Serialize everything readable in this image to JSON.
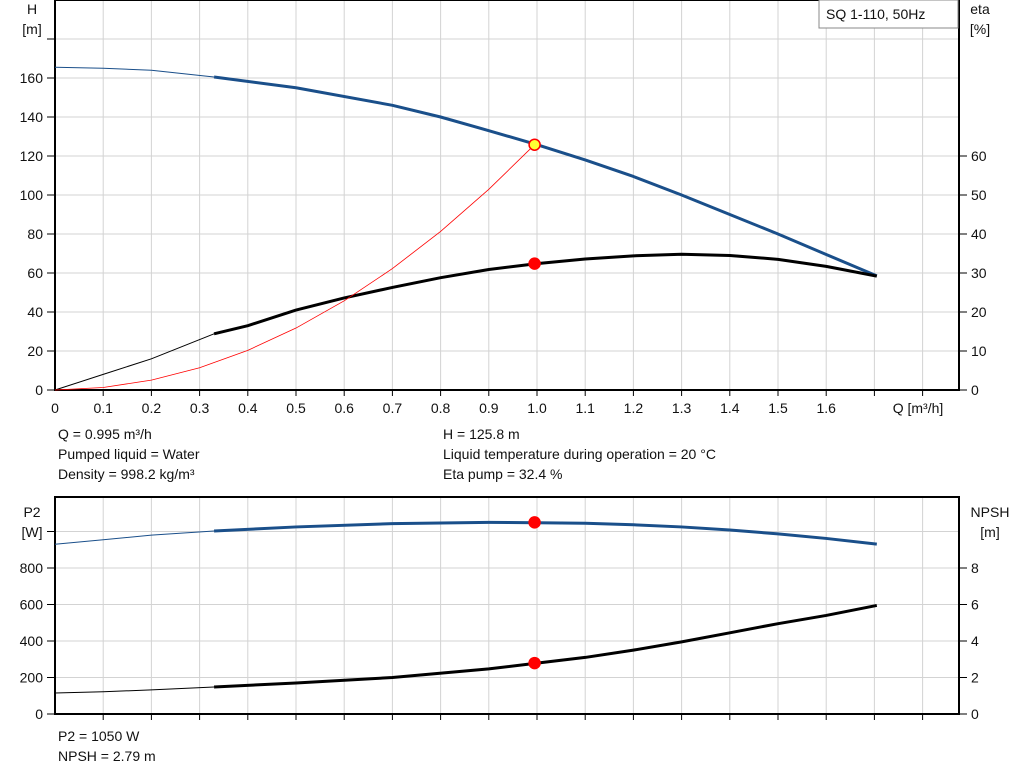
{
  "legend_label": "SQ 1-110, 50Hz",
  "info_top_left": [
    "Q = 0.995 m³/h",
    "Pumped liquid = Water",
    "Density = 998.2 kg/m³"
  ],
  "info_top_right": [
    "H = 125.8 m",
    "Liquid temperature during operation = 20 °C",
    "Eta pump = 32.4 %"
  ],
  "info_bottom": [
    "P2 = 1050 W",
    "NPSH = 2.79 m"
  ],
  "colors": {
    "blue": "#1a4f8a",
    "black": "#000000",
    "red": "#ff0000",
    "marker_fill": "#ffff33",
    "grid": "#d3d3d3"
  },
  "chart_data": [
    {
      "type": "line",
      "xlabel": "Q [m³/h]",
      "ylabel_left": [
        "H",
        "[m]"
      ],
      "ylabel_right": [
        "eta",
        "[%]"
      ],
      "xlim": [
        0,
        1.87
      ],
      "ylim_left": [
        0,
        190
      ],
      "ylim_right": [
        0,
        95
      ],
      "grid": true,
      "x_ticks": [
        "0",
        "0.1",
        "0.2",
        "0.3",
        "0.4",
        "0.5",
        "0.6",
        "0.7",
        "0.8",
        "0.9",
        "1.0",
        "1.1",
        "1.2",
        "1.3",
        "1.4",
        "1.5",
        "1.6"
      ],
      "y_ticks_left": [
        "0",
        "20",
        "40",
        "60",
        "80",
        "100",
        "120",
        "140",
        "160"
      ],
      "y_ticks_right": [
        "0",
        "10",
        "20",
        "30",
        "40",
        "50",
        "60"
      ],
      "operating_range_start": 0.33,
      "series": [
        {
          "key": "H",
          "axis": "left",
          "color": "#1a4f8a",
          "points": [
            [
              0,
              165.5
            ],
            [
              0.1,
              165
            ],
            [
              0.2,
              164
            ],
            [
              0.33,
              160.5
            ],
            [
              0.5,
              155
            ],
            [
              0.7,
              146
            ],
            [
              0.8,
              140
            ],
            [
              0.9,
              133
            ],
            [
              1.0,
              125.8
            ],
            [
              1.1,
              118
            ],
            [
              1.2,
              109.5
            ],
            [
              1.3,
              100
            ],
            [
              1.4,
              90
            ],
            [
              1.5,
              80
            ],
            [
              1.6,
              69.5
            ],
            [
              1.705,
              58.5
            ]
          ]
        },
        {
          "key": "eta",
          "axis": "right",
          "color": "#000000",
          "points": [
            [
              0,
              0
            ],
            [
              0.1,
              4
            ],
            [
              0.2,
              8
            ],
            [
              0.33,
              14.4
            ],
            [
              0.4,
              16.5
            ],
            [
              0.5,
              20.5
            ],
            [
              0.6,
              23.6
            ],
            [
              0.7,
              26.3
            ],
            [
              0.8,
              28.8
            ],
            [
              0.9,
              30.9
            ],
            [
              1.0,
              32.4
            ],
            [
              1.1,
              33.6
            ],
            [
              1.2,
              34.4
            ],
            [
              1.3,
              34.8
            ],
            [
              1.4,
              34.5
            ],
            [
              1.5,
              33.5
            ],
            [
              1.6,
              31.7
            ],
            [
              1.705,
              29.2
            ]
          ]
        },
        {
          "key": "system",
          "axis": "left",
          "color": "#ff0000",
          "points": [
            [
              0,
              0
            ],
            [
              0.1,
              1.27
            ],
            [
              0.2,
              5.08
            ],
            [
              0.3,
              11.43
            ],
            [
              0.4,
              20.33
            ],
            [
              0.5,
              31.77
            ],
            [
              0.6,
              45.74
            ],
            [
              0.7,
              62.26
            ],
            [
              0.8,
              81.32
            ],
            [
              0.9,
              102.9
            ],
            [
              0.995,
              125.8
            ]
          ]
        }
      ],
      "duty_points": [
        {
          "axis": "left",
          "x": 0.995,
          "y": 125.8,
          "fill": "#ffff33"
        },
        {
          "axis": "right",
          "x": 0.995,
          "y": 32.4,
          "fill": "#ff0000"
        }
      ]
    },
    {
      "type": "line",
      "ylabel_left": [
        "P2",
        "[W]"
      ],
      "ylabel_right": [
        "NPSH",
        "[m]"
      ],
      "xlim": [
        0,
        1.87
      ],
      "ylim_left": [
        0,
        1190
      ],
      "ylim_right": [
        0,
        11.9
      ],
      "grid": true,
      "y_ticks_left": [
        "0",
        "200",
        "400",
        "600",
        "800"
      ],
      "y_ticks_right": [
        "0",
        "2",
        "4",
        "6",
        "8"
      ],
      "operating_range_start": 0.33,
      "series": [
        {
          "key": "P2",
          "axis": "left",
          "color": "#1a4f8a",
          "points": [
            [
              0,
              930
            ],
            [
              0.1,
              955
            ],
            [
              0.2,
              980
            ],
            [
              0.33,
              1003
            ],
            [
              0.5,
              1025
            ],
            [
              0.7,
              1043
            ],
            [
              0.9,
              1050
            ],
            [
              1.0,
              1048
            ],
            [
              1.1,
              1045
            ],
            [
              1.2,
              1037
            ],
            [
              1.3,
              1025
            ],
            [
              1.4,
              1008
            ],
            [
              1.5,
              987
            ],
            [
              1.6,
              962
            ],
            [
              1.705,
              931
            ]
          ]
        },
        {
          "key": "NPSH",
          "axis": "right",
          "color": "#000000",
          "points": [
            [
              0,
              1.15
            ],
            [
              0.1,
              1.22
            ],
            [
              0.2,
              1.32
            ],
            [
              0.33,
              1.48
            ],
            [
              0.5,
              1.7
            ],
            [
              0.7,
              2.0
            ],
            [
              0.9,
              2.47
            ],
            [
              1.0,
              2.79
            ],
            [
              1.1,
              3.1
            ],
            [
              1.2,
              3.5
            ],
            [
              1.3,
              3.95
            ],
            [
              1.4,
              4.45
            ],
            [
              1.5,
              4.95
            ],
            [
              1.6,
              5.4
            ],
            [
              1.705,
              5.95
            ]
          ]
        }
      ],
      "duty_points": [
        {
          "axis": "left",
          "x": 0.995,
          "y": 1050,
          "fill": "#ff0000"
        },
        {
          "axis": "right",
          "x": 0.995,
          "y": 2.79,
          "fill": "#ff0000"
        }
      ]
    }
  ]
}
